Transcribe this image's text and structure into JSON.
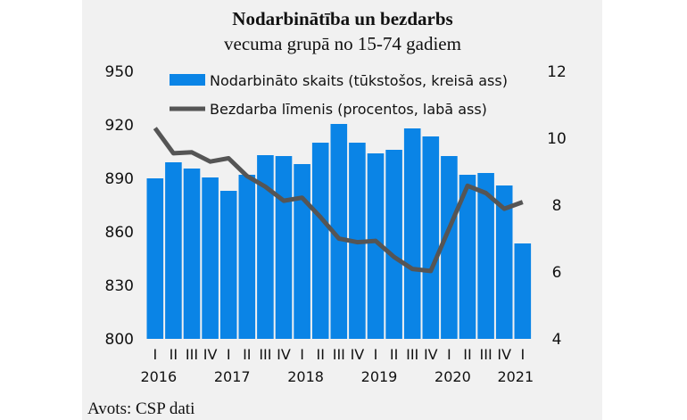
{
  "chart_data": {
    "type": "bar+line",
    "title": "Nodarbinātība un bezdarbs",
    "subtitle": "vecuma grupā no 15-74 gadiem",
    "source": "Avots: CSP dati",
    "categories": [
      "I",
      "II",
      "III",
      "IV",
      "I",
      "II",
      "III",
      "IV",
      "I",
      "II",
      "III",
      "IV",
      "I",
      "II",
      "III",
      "IV",
      "I",
      "II",
      "III",
      "IV",
      "I"
    ],
    "years": [
      "2016",
      "2017",
      "2018",
      "2019",
      "2020",
      "2021"
    ],
    "left_axis": {
      "min": 800,
      "max": 950,
      "ticks": [
        "800",
        "830",
        "860",
        "890",
        "920",
        "950"
      ]
    },
    "right_axis": {
      "min": 4,
      "max": 12,
      "ticks": [
        "4",
        "6",
        "8",
        "10",
        "12"
      ]
    },
    "grid": false,
    "legend_placement": "top",
    "series": [
      {
        "name": "Nodarbināto skaits (tūkstošos, kreisā ass)",
        "type": "bar",
        "axis": "left",
        "color": "#0a84e6",
        "values": [
          890,
          899,
          895.5,
          890.5,
          883,
          892,
          903,
          902.5,
          898,
          910,
          920.5,
          910,
          904,
          906,
          918,
          913.5,
          902.5,
          892,
          893,
          886,
          853.5
        ]
      },
      {
        "name": "Bezdarba līmenis (procentos, labā ass)",
        "type": "line",
        "axis": "right",
        "color": "#555555",
        "values": [
          10.3,
          9.55,
          9.58,
          9.3,
          9.4,
          8.87,
          8.55,
          8.13,
          8.22,
          7.64,
          7.0,
          6.89,
          6.93,
          6.45,
          6.09,
          6.03,
          7.3,
          8.58,
          8.36,
          7.89,
          8.09
        ]
      }
    ]
  }
}
